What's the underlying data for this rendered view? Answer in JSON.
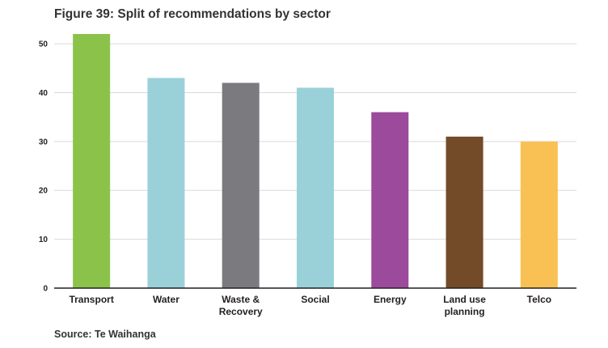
{
  "chart_data": {
    "type": "bar",
    "title": "Figure 39: Split of recommendations by sector",
    "xlabel": "",
    "ylabel": "",
    "categories": [
      "Transport",
      "Water",
      "Waste & Recovery",
      "Social",
      "Energy",
      "Land use planning",
      "Telco"
    ],
    "category_lines": [
      [
        "Transport"
      ],
      [
        "Water"
      ],
      [
        "Waste &",
        "Recovery"
      ],
      [
        "Social"
      ],
      [
        "Energy"
      ],
      [
        "Land use",
        "planning"
      ],
      [
        "Telco"
      ]
    ],
    "values": [
      52,
      43,
      42,
      41,
      36,
      31,
      30
    ],
    "colors": [
      "#8bc34a",
      "#9ad1d9",
      "#7a7a7f",
      "#9ad1d9",
      "#9c4a9c",
      "#734b29",
      "#f9c153"
    ],
    "ylim": [
      0,
      52
    ],
    "yticks": [
      0,
      10,
      20,
      30,
      40,
      50
    ],
    "grid": true,
    "legend": "none",
    "source": "Source: Te Waihanga"
  }
}
